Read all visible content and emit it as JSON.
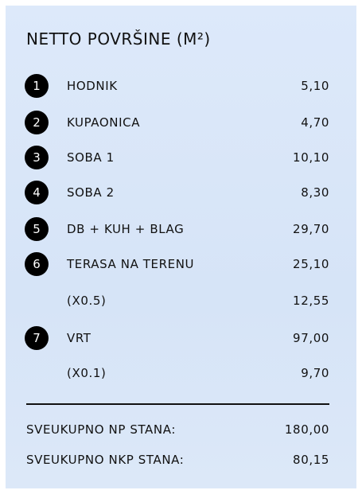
{
  "title": "NETTO POVRŠINE (M²)",
  "rows": [
    {
      "badge": "1",
      "label": "HODNIK",
      "value": "5,10"
    },
    {
      "badge": "2",
      "label": "KUPAONICA",
      "value": "4,70"
    },
    {
      "badge": "3",
      "label": "SOBA 1",
      "value": "10,10"
    },
    {
      "badge": "4",
      "label": "SOBA 2",
      "value": "8,30"
    },
    {
      "badge": "5",
      "label": "DB + KUH + BLAG",
      "value": "29,70"
    },
    {
      "badge": "6",
      "label": "TERASA NA TERENU",
      "value": "25,10"
    },
    {
      "label": "(X0.5)",
      "value": "12,55"
    },
    {
      "badge": "7",
      "label": "VRT",
      "value": "97,00"
    },
    {
      "label": "(X0.1)",
      "value": "9,70"
    }
  ],
  "totals": [
    {
      "label": "SVEUKUPNO NP STANA:",
      "value": "180,00"
    },
    {
      "label": "SVEUKUPNO NKP STANA:",
      "value": "80,15"
    }
  ]
}
